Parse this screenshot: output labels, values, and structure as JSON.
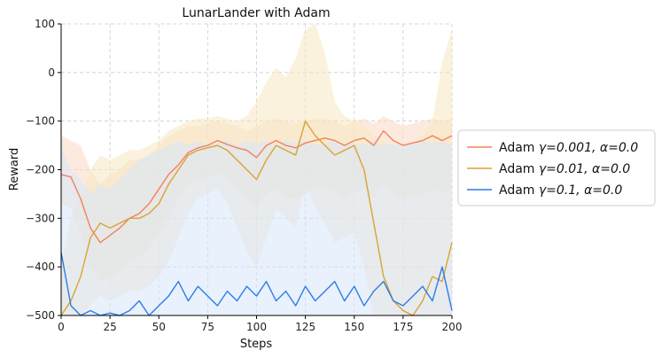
{
  "chart_data": {
    "type": "line",
    "title": "LunarLander with Adam",
    "xlabel": "Steps",
    "ylabel": "Reward",
    "xlim": [
      0,
      200
    ],
    "ylim": [
      -500,
      100
    ],
    "xticks": [
      0,
      25,
      50,
      75,
      100,
      125,
      150,
      175,
      200
    ],
    "yticks": [
      100,
      0,
      -100,
      -200,
      -300,
      -400,
      -500
    ],
    "xtick_labels": [
      "0",
      "25",
      "50",
      "75",
      "100",
      "125",
      "150",
      "175",
      "200"
    ],
    "ytick_labels": [
      "100",
      "0",
      "−100",
      "−200",
      "−300",
      "−400",
      "−500"
    ],
    "grid": true,
    "legend_position": "right-outside",
    "series": [
      {
        "name": "Adam γ=0.001, α=0.0",
        "label_parts": {
          "optimizer": "Adam",
          "gamma": "γ=0.001,",
          "alpha": "α=0.0"
        },
        "color": "#f4805d",
        "band_color": "#fbd9c4",
        "x": [
          0,
          5,
          10,
          15,
          20,
          25,
          30,
          35,
          40,
          45,
          50,
          55,
          60,
          65,
          70,
          75,
          80,
          85,
          90,
          95,
          100,
          105,
          110,
          115,
          120,
          125,
          130,
          135,
          140,
          145,
          150,
          155,
          160,
          165,
          170,
          175,
          180,
          185,
          190,
          195,
          200
        ],
        "y": [
          -210,
          -215,
          -260,
          -320,
          -350,
          -335,
          -320,
          -300,
          -290,
          -270,
          -240,
          -210,
          -190,
          -165,
          -155,
          -150,
          -140,
          -148,
          -155,
          -160,
          -175,
          -150,
          -140,
          -150,
          -155,
          -145,
          -140,
          -135,
          -140,
          -150,
          -140,
          -135,
          -150,
          -120,
          -140,
          -150,
          -145,
          -140,
          -130,
          -140,
          -130
        ],
        "lower": [
          -270,
          -280,
          -330,
          -400,
          -430,
          -420,
          -410,
          -390,
          -380,
          -360,
          -330,
          -300,
          -260,
          -230,
          -220,
          -215,
          -210,
          -220,
          -240,
          -260,
          -280,
          -250,
          -240,
          -255,
          -260,
          -250,
          -240,
          -235,
          -245,
          -260,
          -245,
          -240,
          -260,
          -230,
          -250,
          -260,
          -255,
          -250,
          -240,
          -250,
          -240
        ],
        "upper": [
          -130,
          -140,
          -150,
          -200,
          -230,
          -210,
          -200,
          -180,
          -180,
          -170,
          -150,
          -130,
          -120,
          -110,
          -110,
          -105,
          -100,
          -105,
          -110,
          -120,
          -110,
          -100,
          -95,
          -100,
          -105,
          -100,
          -95,
          -95,
          -100,
          -110,
          -100,
          -95,
          -105,
          -90,
          -100,
          -110,
          -105,
          -100,
          -95,
          -100,
          -95
        ]
      },
      {
        "name": "Adam γ=0.01, α=0.0",
        "label_parts": {
          "optimizer": "Adam",
          "gamma": "γ=0.01,",
          "alpha": "α=0.0"
        },
        "color": "#d9a432",
        "band_color": "#f6e7bf",
        "x": [
          0,
          5,
          10,
          15,
          20,
          25,
          30,
          35,
          40,
          45,
          50,
          55,
          60,
          65,
          70,
          75,
          80,
          85,
          90,
          95,
          100,
          105,
          110,
          115,
          120,
          125,
          130,
          135,
          140,
          145,
          150,
          155,
          160,
          165,
          170,
          175,
          180,
          185,
          190,
          195,
          200
        ],
        "y": [
          -500,
          -470,
          -420,
          -340,
          -310,
          -320,
          -310,
          -300,
          -300,
          -290,
          -270,
          -230,
          -200,
          -170,
          -160,
          -155,
          -150,
          -160,
          -180,
          -200,
          -220,
          -180,
          -150,
          -160,
          -170,
          -100,
          -130,
          -150,
          -170,
          -160,
          -150,
          -200,
          -310,
          -420,
          -470,
          -490,
          -500,
          -470,
          -420,
          -430,
          -350
        ],
        "lower": [
          -500,
          -500,
          -500,
          -480,
          -460,
          -470,
          -460,
          -450,
          -450,
          -440,
          -420,
          -390,
          -340,
          -290,
          -260,
          -250,
          -240,
          -270,
          -320,
          -370,
          -400,
          -340,
          -280,
          -300,
          -320,
          -230,
          -280,
          -310,
          -350,
          -340,
          -330,
          -400,
          -500,
          -500,
          -500,
          -500,
          -500,
          -500,
          -500,
          -500,
          -500
        ],
        "upper": [
          -400,
          -300,
          -260,
          -200,
          -170,
          -180,
          -170,
          -160,
          -160,
          -150,
          -140,
          -120,
          -110,
          -100,
          -95,
          -95,
          -90,
          -95,
          -100,
          -90,
          -60,
          -20,
          10,
          -10,
          30,
          90,
          100,
          40,
          -60,
          -90,
          -100,
          -110,
          -130,
          -140,
          -150,
          -160,
          -150,
          -130,
          -100,
          20,
          90
        ]
      },
      {
        "name": "Adam γ=0.1, α=0.0",
        "label_parts": {
          "optimizer": "Adam",
          "gamma": "γ=0.1,",
          "alpha": "α=0.0"
        },
        "color": "#2f7ce6",
        "band_color": "#d7e6fb",
        "x": [
          0,
          5,
          10,
          15,
          20,
          25,
          30,
          35,
          40,
          45,
          50,
          55,
          60,
          65,
          70,
          75,
          80,
          85,
          90,
          95,
          100,
          105,
          110,
          115,
          120,
          125,
          130,
          135,
          140,
          145,
          150,
          155,
          160,
          165,
          170,
          175,
          180,
          185,
          190,
          195,
          200
        ],
        "y": [
          -370,
          -480,
          -500,
          -490,
          -500,
          -495,
          -500,
          -490,
          -470,
          -500,
          -480,
          -460,
          -430,
          -470,
          -440,
          -460,
          -480,
          -450,
          -470,
          -440,
          -460,
          -430,
          -470,
          -450,
          -480,
          -440,
          -470,
          -450,
          -430,
          -470,
          -440,
          -480,
          -450,
          -430,
          -470,
          -480,
          -460,
          -440,
          -470,
          -400,
          -490
        ],
        "lower": [
          -500,
          -500,
          -500,
          -500,
          -500,
          -500,
          -500,
          -500,
          -500,
          -500,
          -500,
          -500,
          -500,
          -500,
          -500,
          -500,
          -500,
          -500,
          -500,
          -500,
          -500,
          -500,
          -500,
          -500,
          -500,
          -500,
          -500,
          -500,
          -500,
          -500,
          -500,
          -500,
          -500,
          -500,
          -500,
          -500,
          -500,
          -500,
          -500,
          -500,
          -500
        ],
        "upper": [
          -150,
          -200,
          -220,
          -250,
          -230,
          -240,
          -220,
          -200,
          -180,
          -170,
          -160,
          -150,
          -140,
          -150,
          -140,
          -150,
          -145,
          -140,
          -150,
          -140,
          -145,
          -140,
          -150,
          -140,
          -145,
          -140,
          -150,
          -145,
          -140,
          -150,
          -145,
          -150,
          -140,
          -150,
          -145,
          -150,
          -145,
          -140,
          -145,
          -140,
          -150
        ]
      }
    ]
  }
}
